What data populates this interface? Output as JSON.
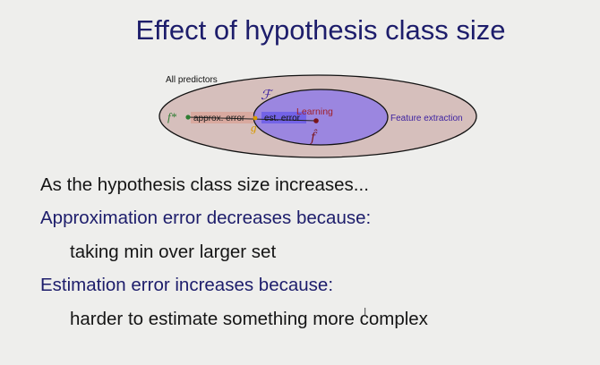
{
  "slide": {
    "title": "Effect of hypothesis class size",
    "diagram": {
      "all_predictors_label": "All predictors",
      "f_star_label": "f*",
      "hypothesis_class_label": "ℱ",
      "learning_label": "Learning",
      "approx_error_label": "approx. error",
      "est_error_label": "est. error",
      "g_label": "g",
      "f_hat_label": "f̂",
      "feature_extraction_label": "Feature extraction",
      "colors": {
        "outer_fill": "#d6bfbc",
        "inner_fill": "#9b86e0",
        "approx_highlight": "#d9a49a",
        "est_highlight": "#6f5fe8",
        "f_star_color": "#2e7d32",
        "learning_color": "#a0202a",
        "g_color": "#d79a00",
        "feature_color": "#3a1fa0"
      }
    },
    "bullets": [
      {
        "text": "As the hypothesis class size increases...",
        "style": "black",
        "indent": 0
      },
      {
        "text": "Approximation error decreases because:",
        "style": "navy",
        "indent": 0
      },
      {
        "text": "taking min over larger set",
        "style": "black",
        "indent": 1
      },
      {
        "text": "Estimation error increases because:",
        "style": "navy",
        "indent": 0
      },
      {
        "text": "harder to estimate something more complex",
        "style": "black",
        "indent": 1
      }
    ]
  }
}
